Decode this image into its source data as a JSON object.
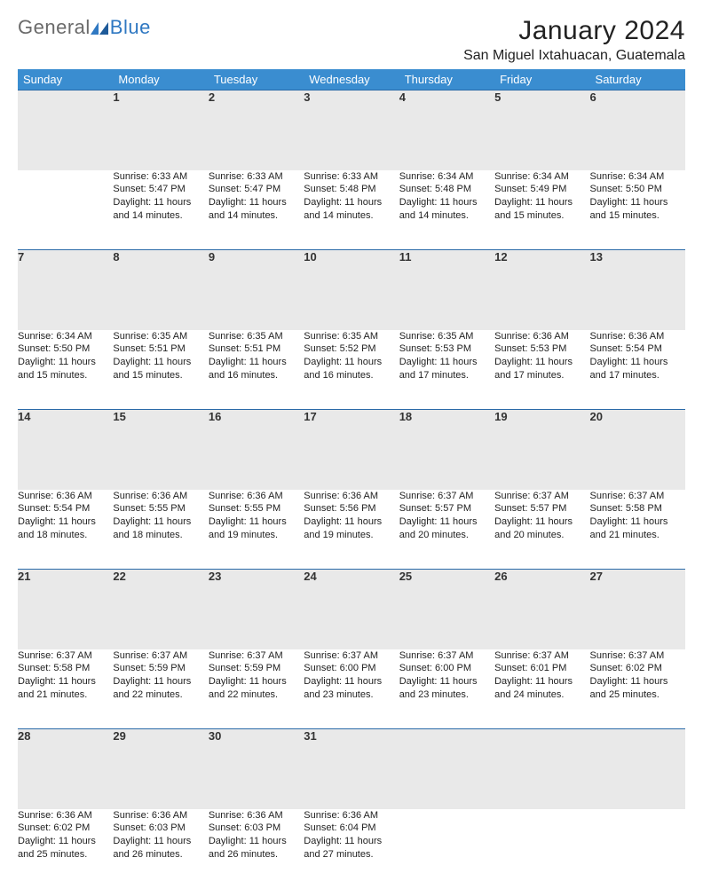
{
  "brand": {
    "part1": "General",
    "part2": "Blue"
  },
  "title": "January 2024",
  "location": "San Miguel Ixtahuacan, Guatemala",
  "colors": {
    "header_bg": "#3a8dd0",
    "header_text": "#ffffff",
    "daynum_bg": "#e9e9e9",
    "row_border": "#2a6aa8",
    "logo_gray": "#6a6a6a",
    "logo_blue": "#2f78c2"
  },
  "weekdays": [
    "Sunday",
    "Monday",
    "Tuesday",
    "Wednesday",
    "Thursday",
    "Friday",
    "Saturday"
  ],
  "weeks": [
    [
      null,
      {
        "n": "1",
        "sr": "Sunrise: 6:33 AM",
        "ss": "Sunset: 5:47 PM",
        "d1": "Daylight: 11 hours",
        "d2": "and 14 minutes."
      },
      {
        "n": "2",
        "sr": "Sunrise: 6:33 AM",
        "ss": "Sunset: 5:47 PM",
        "d1": "Daylight: 11 hours",
        "d2": "and 14 minutes."
      },
      {
        "n": "3",
        "sr": "Sunrise: 6:33 AM",
        "ss": "Sunset: 5:48 PM",
        "d1": "Daylight: 11 hours",
        "d2": "and 14 minutes."
      },
      {
        "n": "4",
        "sr": "Sunrise: 6:34 AM",
        "ss": "Sunset: 5:48 PM",
        "d1": "Daylight: 11 hours",
        "d2": "and 14 minutes."
      },
      {
        "n": "5",
        "sr": "Sunrise: 6:34 AM",
        "ss": "Sunset: 5:49 PM",
        "d1": "Daylight: 11 hours",
        "d2": "and 15 minutes."
      },
      {
        "n": "6",
        "sr": "Sunrise: 6:34 AM",
        "ss": "Sunset: 5:50 PM",
        "d1": "Daylight: 11 hours",
        "d2": "and 15 minutes."
      }
    ],
    [
      {
        "n": "7",
        "sr": "Sunrise: 6:34 AM",
        "ss": "Sunset: 5:50 PM",
        "d1": "Daylight: 11 hours",
        "d2": "and 15 minutes."
      },
      {
        "n": "8",
        "sr": "Sunrise: 6:35 AM",
        "ss": "Sunset: 5:51 PM",
        "d1": "Daylight: 11 hours",
        "d2": "and 15 minutes."
      },
      {
        "n": "9",
        "sr": "Sunrise: 6:35 AM",
        "ss": "Sunset: 5:51 PM",
        "d1": "Daylight: 11 hours",
        "d2": "and 16 minutes."
      },
      {
        "n": "10",
        "sr": "Sunrise: 6:35 AM",
        "ss": "Sunset: 5:52 PM",
        "d1": "Daylight: 11 hours",
        "d2": "and 16 minutes."
      },
      {
        "n": "11",
        "sr": "Sunrise: 6:35 AM",
        "ss": "Sunset: 5:53 PM",
        "d1": "Daylight: 11 hours",
        "d2": "and 17 minutes."
      },
      {
        "n": "12",
        "sr": "Sunrise: 6:36 AM",
        "ss": "Sunset: 5:53 PM",
        "d1": "Daylight: 11 hours",
        "d2": "and 17 minutes."
      },
      {
        "n": "13",
        "sr": "Sunrise: 6:36 AM",
        "ss": "Sunset: 5:54 PM",
        "d1": "Daylight: 11 hours",
        "d2": "and 17 minutes."
      }
    ],
    [
      {
        "n": "14",
        "sr": "Sunrise: 6:36 AM",
        "ss": "Sunset: 5:54 PM",
        "d1": "Daylight: 11 hours",
        "d2": "and 18 minutes."
      },
      {
        "n": "15",
        "sr": "Sunrise: 6:36 AM",
        "ss": "Sunset: 5:55 PM",
        "d1": "Daylight: 11 hours",
        "d2": "and 18 minutes."
      },
      {
        "n": "16",
        "sr": "Sunrise: 6:36 AM",
        "ss": "Sunset: 5:55 PM",
        "d1": "Daylight: 11 hours",
        "d2": "and 19 minutes."
      },
      {
        "n": "17",
        "sr": "Sunrise: 6:36 AM",
        "ss": "Sunset: 5:56 PM",
        "d1": "Daylight: 11 hours",
        "d2": "and 19 minutes."
      },
      {
        "n": "18",
        "sr": "Sunrise: 6:37 AM",
        "ss": "Sunset: 5:57 PM",
        "d1": "Daylight: 11 hours",
        "d2": "and 20 minutes."
      },
      {
        "n": "19",
        "sr": "Sunrise: 6:37 AM",
        "ss": "Sunset: 5:57 PM",
        "d1": "Daylight: 11 hours",
        "d2": "and 20 minutes."
      },
      {
        "n": "20",
        "sr": "Sunrise: 6:37 AM",
        "ss": "Sunset: 5:58 PM",
        "d1": "Daylight: 11 hours",
        "d2": "and 21 minutes."
      }
    ],
    [
      {
        "n": "21",
        "sr": "Sunrise: 6:37 AM",
        "ss": "Sunset: 5:58 PM",
        "d1": "Daylight: 11 hours",
        "d2": "and 21 minutes."
      },
      {
        "n": "22",
        "sr": "Sunrise: 6:37 AM",
        "ss": "Sunset: 5:59 PM",
        "d1": "Daylight: 11 hours",
        "d2": "and 22 minutes."
      },
      {
        "n": "23",
        "sr": "Sunrise: 6:37 AM",
        "ss": "Sunset: 5:59 PM",
        "d1": "Daylight: 11 hours",
        "d2": "and 22 minutes."
      },
      {
        "n": "24",
        "sr": "Sunrise: 6:37 AM",
        "ss": "Sunset: 6:00 PM",
        "d1": "Daylight: 11 hours",
        "d2": "and 23 minutes."
      },
      {
        "n": "25",
        "sr": "Sunrise: 6:37 AM",
        "ss": "Sunset: 6:00 PM",
        "d1": "Daylight: 11 hours",
        "d2": "and 23 minutes."
      },
      {
        "n": "26",
        "sr": "Sunrise: 6:37 AM",
        "ss": "Sunset: 6:01 PM",
        "d1": "Daylight: 11 hours",
        "d2": "and 24 minutes."
      },
      {
        "n": "27",
        "sr": "Sunrise: 6:37 AM",
        "ss": "Sunset: 6:02 PM",
        "d1": "Daylight: 11 hours",
        "d2": "and 25 minutes."
      }
    ],
    [
      {
        "n": "28",
        "sr": "Sunrise: 6:36 AM",
        "ss": "Sunset: 6:02 PM",
        "d1": "Daylight: 11 hours",
        "d2": "and 25 minutes."
      },
      {
        "n": "29",
        "sr": "Sunrise: 6:36 AM",
        "ss": "Sunset: 6:03 PM",
        "d1": "Daylight: 11 hours",
        "d2": "and 26 minutes."
      },
      {
        "n": "30",
        "sr": "Sunrise: 6:36 AM",
        "ss": "Sunset: 6:03 PM",
        "d1": "Daylight: 11 hours",
        "d2": "and 26 minutes."
      },
      {
        "n": "31",
        "sr": "Sunrise: 6:36 AM",
        "ss": "Sunset: 6:04 PM",
        "d1": "Daylight: 11 hours",
        "d2": "and 27 minutes."
      },
      null,
      null,
      null
    ]
  ]
}
